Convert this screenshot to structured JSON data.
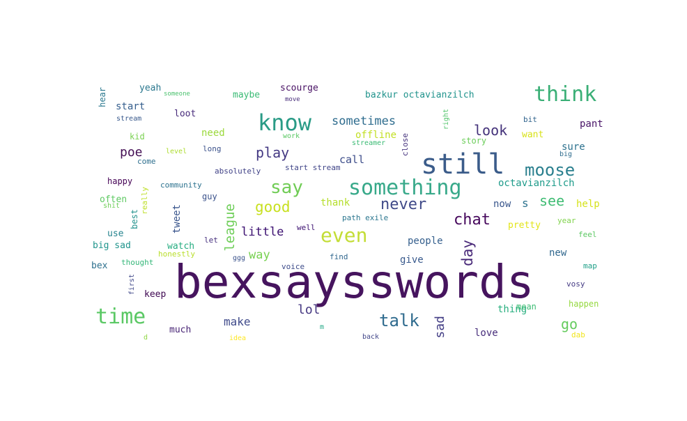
{
  "words": [
    {
      "text": "bexsaysswords",
      "color": "#46145e"
    },
    {
      "text": "still",
      "color": "#3b5c8a"
    },
    {
      "text": "know",
      "color": "#2a9b86"
    },
    {
      "text": "think",
      "color": "#3aaf76"
    },
    {
      "text": "something",
      "color": "#38a98a"
    },
    {
      "text": "time",
      "color": "#5ac864"
    },
    {
      "text": "say",
      "color": "#70cc55"
    },
    {
      "text": "even",
      "color": "#c3dd36"
    },
    {
      "text": "moose",
      "color": "#2a7f8e"
    },
    {
      "text": "talk",
      "color": "#2f6b8e"
    },
    {
      "text": "never",
      "color": "#404a88"
    },
    {
      "text": "chat",
      "color": "#46085c"
    },
    {
      "text": "good",
      "color": "#c8e020"
    },
    {
      "text": "play",
      "color": "#443983"
    },
    {
      "text": "look",
      "color": "#44327a"
    },
    {
      "text": "see",
      "color": "#3fbc73"
    },
    {
      "text": "go",
      "color": "#65cb5e"
    },
    {
      "text": "lol",
      "color": "#453781"
    },
    {
      "text": "poe",
      "color": "#440f54"
    },
    {
      "text": "sometimes",
      "color": "#2e6c8e"
    },
    {
      "text": "little",
      "color": "#3b0f70"
    },
    {
      "text": "make",
      "color": "#3f4a8a"
    },
    {
      "text": "call",
      "color": "#3d4d8a"
    },
    {
      "text": "way",
      "color": "#78d151"
    },
    {
      "text": "love",
      "color": "#472d7b"
    },
    {
      "text": "offline",
      "color": "#c2df23"
    },
    {
      "text": "need",
      "color": "#9bd93c"
    },
    {
      "text": "octavianzilch",
      "color": "#1e9b8a"
    },
    {
      "text": "people",
      "color": "#355f8d"
    },
    {
      "text": "give",
      "color": "#38598c"
    },
    {
      "text": "new",
      "color": "#31688e"
    },
    {
      "text": "now",
      "color": "#39568c"
    },
    {
      "text": "thank",
      "color": "#b5de2b"
    },
    {
      "text": "pant",
      "color": "#481467"
    },
    {
      "text": "sure",
      "color": "#2c718e"
    },
    {
      "text": "help",
      "color": "#d5e21a"
    },
    {
      "text": "keep",
      "color": "#3e0751"
    },
    {
      "text": "thing",
      "color": "#29af7f"
    },
    {
      "text": "much",
      "color": "#482475"
    },
    {
      "text": "start",
      "color": "#355e8d"
    },
    {
      "text": "loot",
      "color": "#472a7a"
    },
    {
      "text": "maybe",
      "color": "#3bbb75"
    },
    {
      "text": "scourge",
      "color": "#471063"
    },
    {
      "text": "bazkur octavianzilch",
      "color": "#20938c"
    },
    {
      "text": "yeah",
      "color": "#2a778e"
    },
    {
      "text": "want",
      "color": "#d8e219"
    },
    {
      "text": "pretty",
      "color": "#e2e418"
    },
    {
      "text": "often",
      "color": "#5ec962"
    },
    {
      "text": "use",
      "color": "#25838e"
    },
    {
      "text": "big sad",
      "color": "#1f948c"
    },
    {
      "text": "watch",
      "color": "#26ad81"
    },
    {
      "text": "bex",
      "color": "#2d708e"
    },
    {
      "text": "happy",
      "color": "#440154"
    },
    {
      "text": "kid",
      "color": "#7ad151"
    },
    {
      "text": "story",
      "color": "#6ccd5a"
    },
    {
      "text": "guy",
      "color": "#3b528b"
    },
    {
      "text": "happen",
      "color": "#95d840"
    },
    {
      "text": "mean",
      "color": "#3dbc74"
    },
    {
      "text": "map",
      "color": "#1fa088"
    },
    {
      "text": "bit",
      "color": "#32658e"
    },
    {
      "text": "feel",
      "color": "#5cc863"
    },
    {
      "text": "come",
      "color": "#2e6f8e"
    },
    {
      "text": "thought",
      "color": "#35b779"
    },
    {
      "text": "honestly",
      "color": "#b8de29"
    },
    {
      "text": "community",
      "color": "#2c728e"
    },
    {
      "text": "absolutely",
      "color": "#414287"
    },
    {
      "text": "start stream",
      "color": "#404588"
    },
    {
      "text": "path exile",
      "color": "#2a768e"
    },
    {
      "text": "let",
      "color": "#46307e"
    },
    {
      "text": "long",
      "color": "#3b518b"
    },
    {
      "text": "voice",
      "color": "#3e4c8a"
    },
    {
      "text": "find",
      "color": "#31678e"
    },
    {
      "text": "well",
      "color": "#3b0f70"
    },
    {
      "text": "year",
      "color": "#81d34d"
    },
    {
      "text": "vosy",
      "color": "#443a83"
    },
    {
      "text": "dab",
      "color": "#f1e51d"
    },
    {
      "text": "big",
      "color": "#2f6c8e"
    },
    {
      "text": "level",
      "color": "#addc30"
    },
    {
      "text": "work",
      "color": "#5ac864"
    },
    {
      "text": "streamer",
      "color": "#3cbb75"
    },
    {
      "text": "ggg",
      "color": "#3b528b"
    },
    {
      "text": "stream",
      "color": "#38598c"
    },
    {
      "text": "someone",
      "color": "#4ac16d"
    },
    {
      "text": "move",
      "color": "#472c7a"
    },
    {
      "text": "d",
      "color": "#8fd744"
    },
    {
      "text": "m",
      "color": "#22a785"
    },
    {
      "text": "idea",
      "color": "#fde725"
    },
    {
      "text": "back",
      "color": "#404588"
    },
    {
      "text": "shit",
      "color": "#6ece58"
    }
  ],
  "vertical_words": [
    {
      "text": "league",
      "color": "#6ece58"
    },
    {
      "text": "day",
      "color": "#482878"
    },
    {
      "text": "sad",
      "color": "#433e85"
    },
    {
      "text": "tweet",
      "color": "#39558c"
    },
    {
      "text": "best",
      "color": "#21918c"
    },
    {
      "text": "really",
      "color": "#bddf26"
    },
    {
      "text": "hear",
      "color": "#2a788e"
    },
    {
      "text": "right",
      "color": "#50c46a"
    },
    {
      "text": "close",
      "color": "#46337e"
    },
    {
      "text": "first",
      "color": "#3f4788"
    }
  ],
  "stray_letter": {
    "text": "s",
    "color": "#2c728e"
  }
}
